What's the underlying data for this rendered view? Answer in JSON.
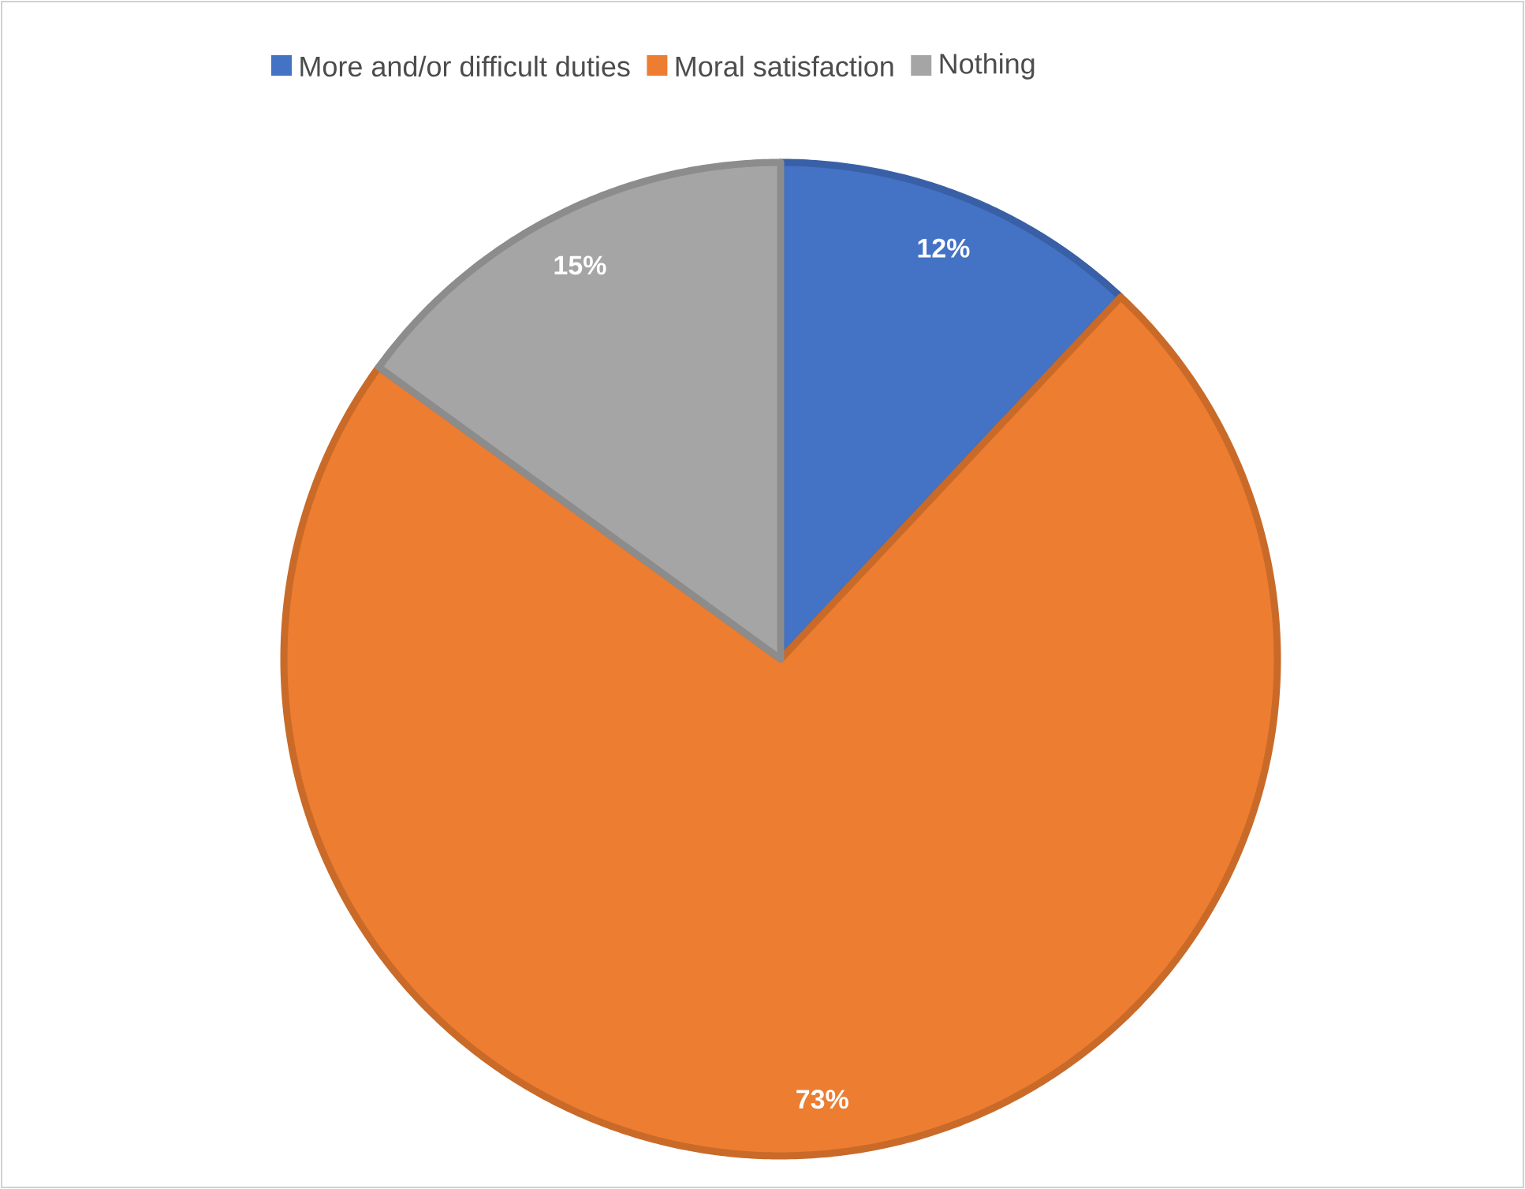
{
  "chart_data": {
    "type": "pie",
    "categories": [
      "More and/or difficult duties",
      "Moral satisfaction",
      "Nothing"
    ],
    "values": [
      12,
      73,
      15
    ],
    "colors": [
      "#4472c4",
      "#ed7d31",
      "#a5a5a5"
    ],
    "value_labels": [
      "12%",
      "73%",
      "15%"
    ],
    "legend": "top"
  }
}
